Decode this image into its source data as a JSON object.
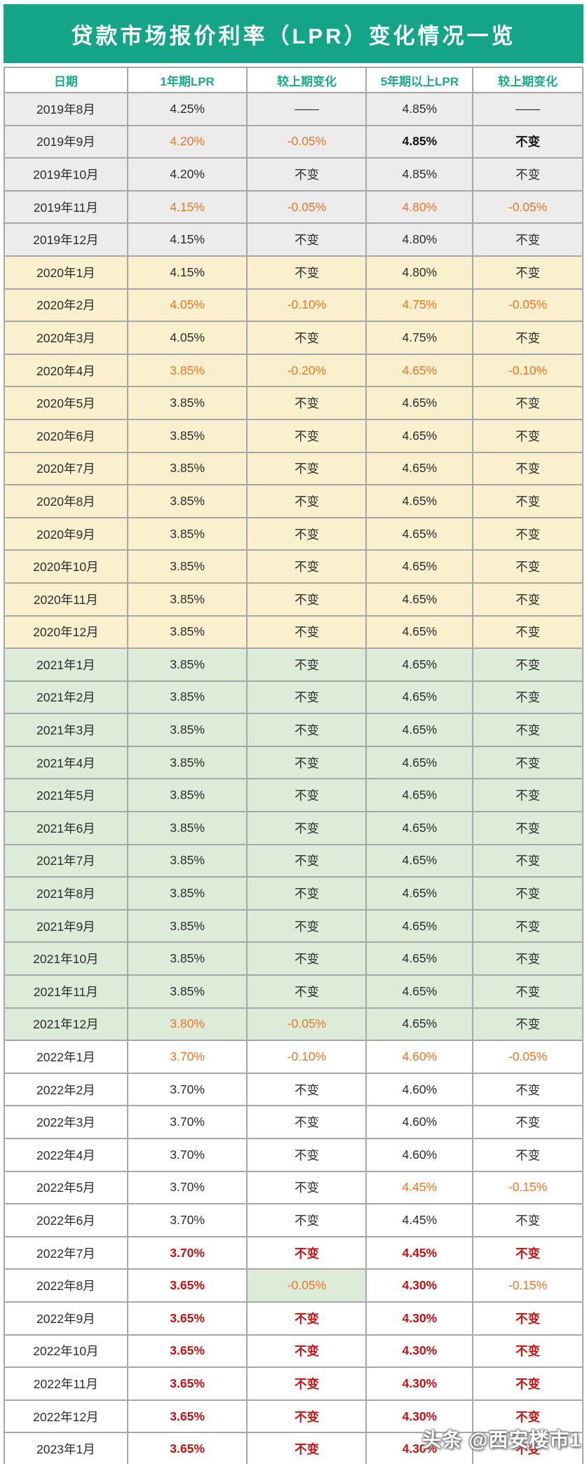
{
  "colors": {
    "title_bg": "#14A487",
    "header_text": "#1CA98A",
    "orange": "#ED7524",
    "red": "#C41010",
    "black": "#2B2B2B",
    "row_gray": "#ECECEC",
    "row_yellow": "#FBF0CD",
    "row_green": "#DCECD8",
    "row_white": "#FFFFFF",
    "border": "#A7A7A7"
  },
  "watermark": {
    "text": "头条 @西安楼市1"
  },
  "chart_data": {
    "type": "table",
    "title": "贷款市场报价利率（LPR）变化情况一览",
    "columns": [
      "日期",
      "1年期LPR",
      "较上期变化",
      "5年期以上LPR",
      "较上期变化"
    ],
    "rows": [
      {
        "date": "2019年8月",
        "bg": "gray",
        "cells": [
          {
            "text": "4.25%",
            "color": "black"
          },
          {
            "text": "——",
            "color": "black"
          },
          {
            "text": "4.85%",
            "color": "black"
          },
          {
            "text": "——",
            "color": "black"
          }
        ]
      },
      {
        "date": "2019年9月",
        "bg": "gray",
        "cells": [
          {
            "text": "4.20%",
            "color": "orange"
          },
          {
            "text": "-0.05%",
            "color": "orange"
          },
          {
            "text": "4.85%",
            "color": "black-bold"
          },
          {
            "text": "不变",
            "color": "black-bold"
          }
        ]
      },
      {
        "date": "2019年10月",
        "bg": "gray",
        "cells": [
          {
            "text": "4.20%",
            "color": "black"
          },
          {
            "text": "不变",
            "color": "black"
          },
          {
            "text": "4.85%",
            "color": "black"
          },
          {
            "text": "不变",
            "color": "black"
          }
        ]
      },
      {
        "date": "2019年11月",
        "bg": "gray",
        "cells": [
          {
            "text": "4.15%",
            "color": "orange"
          },
          {
            "text": "-0.05%",
            "color": "orange"
          },
          {
            "text": "4.80%",
            "color": "orange"
          },
          {
            "text": "-0.05%",
            "color": "orange"
          }
        ]
      },
      {
        "date": "2019年12月",
        "bg": "gray",
        "cells": [
          {
            "text": "4.15%",
            "color": "black"
          },
          {
            "text": "不变",
            "color": "black"
          },
          {
            "text": "4.80%",
            "color": "black"
          },
          {
            "text": "不变",
            "color": "black"
          }
        ]
      },
      {
        "date": "2020年1月",
        "bg": "yellow",
        "cells": [
          {
            "text": "4.15%",
            "color": "black"
          },
          {
            "text": "不变",
            "color": "black"
          },
          {
            "text": "4.80%",
            "color": "black"
          },
          {
            "text": "不变",
            "color": "black"
          }
        ]
      },
      {
        "date": "2020年2月",
        "bg": "yellow",
        "cells": [
          {
            "text": "4.05%",
            "color": "orange"
          },
          {
            "text": "-0.10%",
            "color": "orange"
          },
          {
            "text": "4.75%",
            "color": "orange"
          },
          {
            "text": "-0.05%",
            "color": "orange"
          }
        ]
      },
      {
        "date": "2020年3月",
        "bg": "yellow",
        "cells": [
          {
            "text": "4.05%",
            "color": "black"
          },
          {
            "text": "不变",
            "color": "black"
          },
          {
            "text": "4.75%",
            "color": "black"
          },
          {
            "text": "不变",
            "color": "black"
          }
        ]
      },
      {
        "date": "2020年4月",
        "bg": "yellow",
        "cells": [
          {
            "text": "3.85%",
            "color": "orange"
          },
          {
            "text": "-0.20%",
            "color": "orange"
          },
          {
            "text": "4.65%",
            "color": "orange"
          },
          {
            "text": "-0.10%",
            "color": "orange"
          }
        ]
      },
      {
        "date": "2020年5月",
        "bg": "yellow",
        "cells": [
          {
            "text": "3.85%",
            "color": "black"
          },
          {
            "text": "不变",
            "color": "black"
          },
          {
            "text": "4.65%",
            "color": "black"
          },
          {
            "text": "不变",
            "color": "black"
          }
        ]
      },
      {
        "date": "2020年6月",
        "bg": "yellow",
        "cells": [
          {
            "text": "3.85%",
            "color": "black"
          },
          {
            "text": "不变",
            "color": "black"
          },
          {
            "text": "4.65%",
            "color": "black"
          },
          {
            "text": "不变",
            "color": "black"
          }
        ]
      },
      {
        "date": "2020年7月",
        "bg": "yellow",
        "cells": [
          {
            "text": "3.85%",
            "color": "black"
          },
          {
            "text": "不变",
            "color": "black"
          },
          {
            "text": "4.65%",
            "color": "black"
          },
          {
            "text": "不变",
            "color": "black"
          }
        ]
      },
      {
        "date": "2020年8月",
        "bg": "yellow",
        "cells": [
          {
            "text": "3.85%",
            "color": "black"
          },
          {
            "text": "不变",
            "color": "black"
          },
          {
            "text": "4.65%",
            "color": "black"
          },
          {
            "text": "不变",
            "color": "black"
          }
        ]
      },
      {
        "date": "2020年9月",
        "bg": "yellow",
        "cells": [
          {
            "text": "3.85%",
            "color": "black"
          },
          {
            "text": "不变",
            "color": "black"
          },
          {
            "text": "4.65%",
            "color": "black"
          },
          {
            "text": "不变",
            "color": "black"
          }
        ]
      },
      {
        "date": "2020年10月",
        "bg": "yellow",
        "cells": [
          {
            "text": "3.85%",
            "color": "black"
          },
          {
            "text": "不变",
            "color": "black"
          },
          {
            "text": "4.65%",
            "color": "black"
          },
          {
            "text": "不变",
            "color": "black"
          }
        ]
      },
      {
        "date": "2020年11月",
        "bg": "yellow",
        "cells": [
          {
            "text": "3.85%",
            "color": "black"
          },
          {
            "text": "不变",
            "color": "black"
          },
          {
            "text": "4.65%",
            "color": "black"
          },
          {
            "text": "不变",
            "color": "black"
          }
        ]
      },
      {
        "date": "2020年12月",
        "bg": "yellow",
        "cells": [
          {
            "text": "3.85%",
            "color": "black"
          },
          {
            "text": "不变",
            "color": "black"
          },
          {
            "text": "4.65%",
            "color": "black"
          },
          {
            "text": "不变",
            "color": "black"
          }
        ]
      },
      {
        "date": "2021年1月",
        "bg": "green",
        "cells": [
          {
            "text": "3.85%",
            "color": "black"
          },
          {
            "text": "不变",
            "color": "black"
          },
          {
            "text": "4.65%",
            "color": "black"
          },
          {
            "text": "不变",
            "color": "black"
          }
        ]
      },
      {
        "date": "2021年2月",
        "bg": "green",
        "cells": [
          {
            "text": "3.85%",
            "color": "black"
          },
          {
            "text": "不变",
            "color": "black"
          },
          {
            "text": "4.65%",
            "color": "black"
          },
          {
            "text": "不变",
            "color": "black"
          }
        ]
      },
      {
        "date": "2021年3月",
        "bg": "green",
        "cells": [
          {
            "text": "3.85%",
            "color": "black"
          },
          {
            "text": "不变",
            "color": "black"
          },
          {
            "text": "4.65%",
            "color": "black"
          },
          {
            "text": "不变",
            "color": "black"
          }
        ]
      },
      {
        "date": "2021年4月",
        "bg": "green",
        "cells": [
          {
            "text": "3.85%",
            "color": "black"
          },
          {
            "text": "不变",
            "color": "black"
          },
          {
            "text": "4.65%",
            "color": "black"
          },
          {
            "text": "不变",
            "color": "black"
          }
        ]
      },
      {
        "date": "2021年5月",
        "bg": "green",
        "cells": [
          {
            "text": "3.85%",
            "color": "black"
          },
          {
            "text": "不变",
            "color": "black"
          },
          {
            "text": "4.65%",
            "color": "black"
          },
          {
            "text": "不变",
            "color": "black"
          }
        ]
      },
      {
        "date": "2021年6月",
        "bg": "green",
        "cells": [
          {
            "text": "3.85%",
            "color": "black"
          },
          {
            "text": "不变",
            "color": "black"
          },
          {
            "text": "4.65%",
            "color": "black"
          },
          {
            "text": "不变",
            "color": "black"
          }
        ]
      },
      {
        "date": "2021年7月",
        "bg": "green",
        "cells": [
          {
            "text": "3.85%",
            "color": "black"
          },
          {
            "text": "不变",
            "color": "black"
          },
          {
            "text": "4.65%",
            "color": "black"
          },
          {
            "text": "不变",
            "color": "black"
          }
        ]
      },
      {
        "date": "2021年8月",
        "bg": "green",
        "cells": [
          {
            "text": "3.85%",
            "color": "black"
          },
          {
            "text": "不变",
            "color": "black"
          },
          {
            "text": "4.65%",
            "color": "black"
          },
          {
            "text": "不变",
            "color": "black"
          }
        ]
      },
      {
        "date": "2021年9月",
        "bg": "green",
        "cells": [
          {
            "text": "3.85%",
            "color": "black"
          },
          {
            "text": "不变",
            "color": "black"
          },
          {
            "text": "4.65%",
            "color": "black"
          },
          {
            "text": "不变",
            "color": "black"
          }
        ]
      },
      {
        "date": "2021年10月",
        "bg": "green",
        "cells": [
          {
            "text": "3.85%",
            "color": "black"
          },
          {
            "text": "不变",
            "color": "black"
          },
          {
            "text": "4.65%",
            "color": "black"
          },
          {
            "text": "不变",
            "color": "black"
          }
        ]
      },
      {
        "date": "2021年11月",
        "bg": "green",
        "cells": [
          {
            "text": "3.85%",
            "color": "black"
          },
          {
            "text": "不变",
            "color": "black"
          },
          {
            "text": "4.65%",
            "color": "black"
          },
          {
            "text": "不变",
            "color": "black"
          }
        ]
      },
      {
        "date": "2021年12月",
        "bg": "green",
        "cells": [
          {
            "text": "3.80%",
            "color": "orange"
          },
          {
            "text": "-0.05%",
            "color": "orange"
          },
          {
            "text": "4.65%",
            "color": "black"
          },
          {
            "text": "不变",
            "color": "black"
          }
        ]
      },
      {
        "date": "2022年1月",
        "bg": "white",
        "cells": [
          {
            "text": "3.70%",
            "color": "orange"
          },
          {
            "text": "-0.10%",
            "color": "orange"
          },
          {
            "text": "4.60%",
            "color": "orange"
          },
          {
            "text": "-0.05%",
            "color": "orange"
          }
        ]
      },
      {
        "date": "2022年2月",
        "bg": "white",
        "cells": [
          {
            "text": "3.70%",
            "color": "black"
          },
          {
            "text": "不变",
            "color": "black"
          },
          {
            "text": "4.60%",
            "color": "black"
          },
          {
            "text": "不变",
            "color": "black"
          }
        ]
      },
      {
        "date": "2022年3月",
        "bg": "white",
        "cells": [
          {
            "text": "3.70%",
            "color": "black"
          },
          {
            "text": "不变",
            "color": "black"
          },
          {
            "text": "4.60%",
            "color": "black"
          },
          {
            "text": "不变",
            "color": "black"
          }
        ]
      },
      {
        "date": "2022年4月",
        "bg": "white",
        "cells": [
          {
            "text": "3.70%",
            "color": "black"
          },
          {
            "text": "不变",
            "color": "black"
          },
          {
            "text": "4.60%",
            "color": "black"
          },
          {
            "text": "不变",
            "color": "black"
          }
        ]
      },
      {
        "date": "2022年5月",
        "bg": "white",
        "cells": [
          {
            "text": "3.70%",
            "color": "black"
          },
          {
            "text": "不变",
            "color": "black"
          },
          {
            "text": "4.45%",
            "color": "orange"
          },
          {
            "text": "-0.15%",
            "color": "orange"
          }
        ]
      },
      {
        "date": "2022年6月",
        "bg": "white",
        "cells": [
          {
            "text": "3.70%",
            "color": "black"
          },
          {
            "text": "不变",
            "color": "black"
          },
          {
            "text": "4.45%",
            "color": "black"
          },
          {
            "text": "不变",
            "color": "black"
          }
        ]
      },
      {
        "date": "2022年7月",
        "bg": "white",
        "cells": [
          {
            "text": "3.70%",
            "color": "red"
          },
          {
            "text": "不变",
            "color": "red"
          },
          {
            "text": "4.45%",
            "color": "red"
          },
          {
            "text": "不变",
            "color": "red"
          }
        ]
      },
      {
        "date": "2022年8月",
        "bg": "white",
        "cells": [
          {
            "text": "3.65%",
            "color": "red"
          },
          {
            "text": "-0.05%",
            "color": "orange",
            "highlight": true
          },
          {
            "text": "4.30%",
            "color": "red"
          },
          {
            "text": "-0.15%",
            "color": "orange"
          }
        ]
      },
      {
        "date": "2022年9月",
        "bg": "white",
        "cells": [
          {
            "text": "3.65%",
            "color": "red"
          },
          {
            "text": "不变",
            "color": "red"
          },
          {
            "text": "4.30%",
            "color": "red"
          },
          {
            "text": "不变",
            "color": "red"
          }
        ]
      },
      {
        "date": "2022年10月",
        "bg": "white",
        "cells": [
          {
            "text": "3.65%",
            "color": "red"
          },
          {
            "text": "不变",
            "color": "red"
          },
          {
            "text": "4.30%",
            "color": "red"
          },
          {
            "text": "不变",
            "color": "red"
          }
        ]
      },
      {
        "date": "2022年11月",
        "bg": "white",
        "cells": [
          {
            "text": "3.65%",
            "color": "red"
          },
          {
            "text": "不变",
            "color": "red"
          },
          {
            "text": "4.30%",
            "color": "red"
          },
          {
            "text": "不变",
            "color": "red"
          }
        ]
      },
      {
        "date": "2022年12月",
        "bg": "white",
        "cells": [
          {
            "text": "3.65%",
            "color": "red"
          },
          {
            "text": "不变",
            "color": "red"
          },
          {
            "text": "4.30%",
            "color": "red"
          },
          {
            "text": "不变",
            "color": "red"
          }
        ]
      },
      {
        "date": "2023年1月",
        "bg": "white",
        "cells": [
          {
            "text": "3.65%",
            "color": "red"
          },
          {
            "text": "不变",
            "color": "red"
          },
          {
            "text": "4.30%",
            "color": "red"
          },
          {
            "text": "不变",
            "color": "red"
          }
        ]
      }
    ]
  }
}
